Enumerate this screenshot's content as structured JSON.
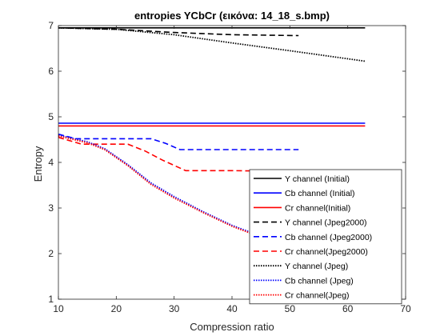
{
  "chart_data": {
    "type": "line",
    "title": "entropies YCbCr (εικόνα: 14_18_s.bmp)",
    "xlabel": "Compression ratio",
    "ylabel": "Entropy",
    "xlim": [
      10,
      70
    ],
    "ylim": [
      1,
      7
    ],
    "xticks": [
      "10",
      "20",
      "30",
      "40",
      "50",
      "60",
      "70"
    ],
    "yticks": [
      "1",
      "2",
      "3",
      "4",
      "5",
      "6",
      "7"
    ],
    "grid": false,
    "legend_position": "bottom-right",
    "series": [
      {
        "name": "Y channel (Initial)",
        "color": "#000000",
        "style": "solid",
        "points": [
          [
            10,
            6.95
          ],
          [
            63,
            6.95
          ]
        ]
      },
      {
        "name": "Cb channel (Initial)",
        "color": "#0000ff",
        "style": "solid",
        "points": [
          [
            10,
            4.86
          ],
          [
            63,
            4.86
          ]
        ]
      },
      {
        "name": "Cr channel(Initial)",
        "color": "#ff0000",
        "style": "solid",
        "points": [
          [
            10,
            4.8
          ],
          [
            63,
            4.8
          ]
        ]
      },
      {
        "name": "Y channel (Jpeg2000)",
        "color": "#000000",
        "style": "dashed",
        "points": [
          [
            10,
            6.95
          ],
          [
            20,
            6.92
          ],
          [
            30,
            6.85
          ],
          [
            40,
            6.8
          ],
          [
            51.5,
            6.78
          ]
        ]
      },
      {
        "name": "Cb channel (Jpeg2000)",
        "color": "#0000ff",
        "style": "dashed",
        "points": [
          [
            10,
            4.62
          ],
          [
            13,
            4.52
          ],
          [
            20,
            4.52
          ],
          [
            26,
            4.52
          ],
          [
            28.5,
            4.42
          ],
          [
            31,
            4.28
          ],
          [
            40,
            4.28
          ],
          [
            51.5,
            4.28
          ]
        ]
      },
      {
        "name": "Cr channel(Jpeg2000)",
        "color": "#ff0000",
        "style": "dashed",
        "points": [
          [
            10,
            4.55
          ],
          [
            14,
            4.4
          ],
          [
            22,
            4.4
          ],
          [
            25,
            4.25
          ],
          [
            28,
            4.05
          ],
          [
            32,
            3.82
          ],
          [
            40,
            3.82
          ],
          [
            51.5,
            3.8
          ]
        ]
      },
      {
        "name": "Y channel (Jpeg)",
        "color": "#000000",
        "style": "dotted",
        "points": [
          [
            10,
            6.95
          ],
          [
            20,
            6.92
          ],
          [
            30,
            6.8
          ],
          [
            40,
            6.62
          ],
          [
            50,
            6.45
          ],
          [
            63,
            6.22
          ]
        ]
      },
      {
        "name": "Cb channel (Jpeg)",
        "color": "#0000ff",
        "style": "dotted",
        "points": [
          [
            10,
            4.6
          ],
          [
            15,
            4.45
          ],
          [
            18,
            4.3
          ],
          [
            22,
            3.95
          ],
          [
            26,
            3.55
          ],
          [
            30,
            3.25
          ],
          [
            35,
            2.92
          ],
          [
            40,
            2.62
          ],
          [
            45,
            2.38
          ],
          [
            50,
            2.2
          ],
          [
            63,
            1.78
          ]
        ]
      },
      {
        "name": "Cr channel(Jpeg)",
        "color": "#ff0000",
        "style": "dotted",
        "points": [
          [
            10,
            4.58
          ],
          [
            15,
            4.43
          ],
          [
            18,
            4.28
          ],
          [
            22,
            3.93
          ],
          [
            26,
            3.52
          ],
          [
            30,
            3.22
          ],
          [
            35,
            2.9
          ],
          [
            40,
            2.6
          ],
          [
            45,
            2.36
          ],
          [
            50,
            2.18
          ],
          [
            63,
            1.76
          ]
        ]
      }
    ]
  }
}
